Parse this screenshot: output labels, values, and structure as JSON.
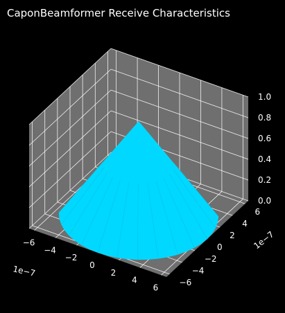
{
  "chart_data": {
    "type": "surface3d",
    "title": "CaponBeamformer Receive Characteristics",
    "surface": {
      "shape": "cone",
      "apex": [
        0,
        0,
        0.9
      ],
      "base_radius": 6.5e-07,
      "base_z": 0.0,
      "color": "#00D8FF"
    },
    "axes": {
      "x": {
        "ticks": [
          -6,
          -4,
          -2,
          0,
          2,
          4,
          6
        ],
        "tick_labels": [
          "−6",
          "−4",
          "−2",
          "0",
          "2",
          "4",
          "6"
        ],
        "range": [
          -6.5,
          6.5
        ],
        "offset_label": "1e−7"
      },
      "y": {
        "ticks": [
          -6,
          -4,
          -2,
          0,
          2,
          4,
          6
        ],
        "tick_labels": [
          "−6",
          "−4",
          "−2",
          "0",
          "2",
          "4",
          "6"
        ],
        "range": [
          -6.5,
          6.5
        ],
        "offset_label": "1e−7"
      },
      "z": {
        "ticks": [
          0.0,
          0.2,
          0.4,
          0.6,
          0.8,
          1.0
        ],
        "tick_labels": [
          "0.0",
          "0.2",
          "0.4",
          "0.6",
          "0.8",
          "1.0"
        ],
        "range": [
          0,
          1.0
        ]
      }
    },
    "grid": true,
    "colors": {
      "background": "#000000",
      "pane": "#6f6f6f",
      "grid": "#ffffff",
      "text": "#ffffff"
    }
  }
}
